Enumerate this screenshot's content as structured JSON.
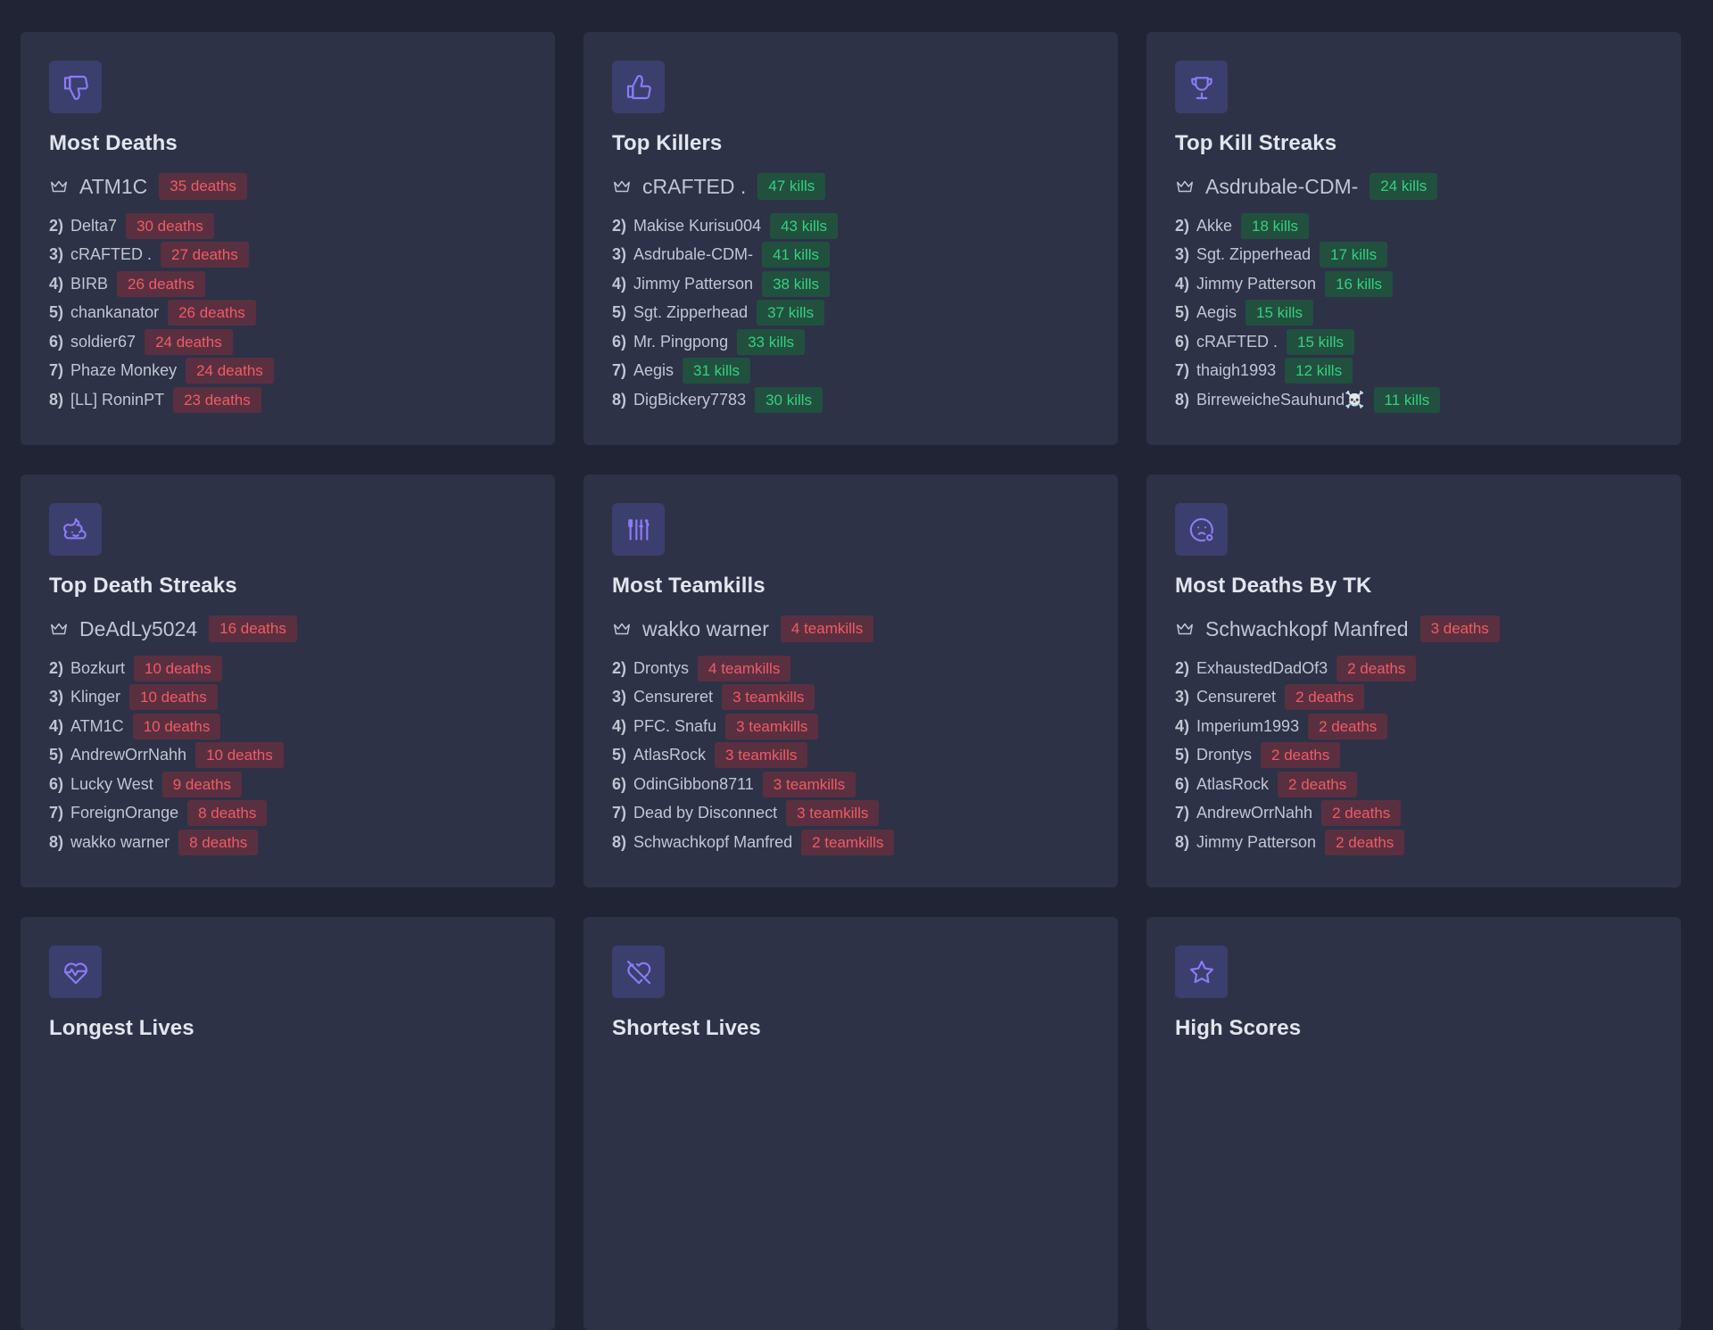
{
  "cards": [
    {
      "title": "Most Deaths",
      "icon": "thumbs-down-icon",
      "badge_color": "red",
      "leader": {
        "name": "ATM1C",
        "value": "35 deaths"
      },
      "rows": [
        {
          "rank": "2)",
          "name": "Delta7",
          "value": "30 deaths"
        },
        {
          "rank": "3)",
          "name": "cRAFTED .",
          "value": "27 deaths"
        },
        {
          "rank": "4)",
          "name": "BIRB",
          "value": "26 deaths"
        },
        {
          "rank": "5)",
          "name": "chankanator",
          "value": "26 deaths"
        },
        {
          "rank": "6)",
          "name": "soldier67",
          "value": "24 deaths"
        },
        {
          "rank": "7)",
          "name": "Phaze Monkey",
          "value": "24 deaths"
        },
        {
          "rank": "8)",
          "name": "[LL] RoninPT",
          "value": "23 deaths"
        }
      ]
    },
    {
      "title": "Top Killers",
      "icon": "thumbs-up-icon",
      "badge_color": "green",
      "leader": {
        "name": "cRAFTED .",
        "value": "47 kills"
      },
      "rows": [
        {
          "rank": "2)",
          "name": "Makise Kurisu004",
          "value": "43 kills"
        },
        {
          "rank": "3)",
          "name": "Asdrubale-CDM-",
          "value": "41 kills"
        },
        {
          "rank": "4)",
          "name": "Jimmy Patterson",
          "value": "38 kills"
        },
        {
          "rank": "5)",
          "name": "Sgt. Zipperhead",
          "value": "37 kills"
        },
        {
          "rank": "6)",
          "name": "Mr. Pingpong",
          "value": "33 kills"
        },
        {
          "rank": "7)",
          "name": "Aegis",
          "value": "31 kills"
        },
        {
          "rank": "8)",
          "name": "DigBickery7783",
          "value": "30 kills"
        }
      ]
    },
    {
      "title": "Top Kill Streaks",
      "icon": "trophy-icon",
      "badge_color": "green",
      "leader": {
        "name": "Asdrubale-CDM-",
        "value": "24 kills"
      },
      "rows": [
        {
          "rank": "2)",
          "name": "Akke",
          "value": "18 kills"
        },
        {
          "rank": "3)",
          "name": "Sgt. Zipperhead",
          "value": "17 kills"
        },
        {
          "rank": "4)",
          "name": "Jimmy Patterson",
          "value": "16 kills"
        },
        {
          "rank": "5)",
          "name": "Aegis",
          "value": "15 kills"
        },
        {
          "rank": "6)",
          "name": "cRAFTED .",
          "value": "15 kills"
        },
        {
          "rank": "7)",
          "name": "thaigh1993",
          "value": "12 kills"
        },
        {
          "rank": "8)",
          "name": "BirreweicheSauhund☠️",
          "value": "11 kills"
        }
      ]
    },
    {
      "title": "Top Death Streaks",
      "icon": "poop-icon",
      "badge_color": "red",
      "leader": {
        "name": "DeAdLy5024",
        "value": "16 deaths"
      },
      "rows": [
        {
          "rank": "2)",
          "name": "Bozkurt",
          "value": "10 deaths"
        },
        {
          "rank": "3)",
          "name": "Klinger",
          "value": "10 deaths"
        },
        {
          "rank": "4)",
          "name": "ATM1C",
          "value": "10 deaths"
        },
        {
          "rank": "5)",
          "name": "AndrewOrrNahh",
          "value": "10 deaths"
        },
        {
          "rank": "6)",
          "name": "Lucky West",
          "value": "9 deaths"
        },
        {
          "rank": "7)",
          "name": "ForeignOrange",
          "value": "8 deaths"
        },
        {
          "rank": "8)",
          "name": "wakko warner",
          "value": "8 deaths"
        }
      ]
    },
    {
      "title": "Most Teamkills",
      "icon": "tools-icon",
      "badge_color": "red",
      "leader": {
        "name": "wakko warner",
        "value": "4 teamkills"
      },
      "rows": [
        {
          "rank": "2)",
          "name": "Drontys",
          "value": "4 teamkills"
        },
        {
          "rank": "3)",
          "name": "Censureret",
          "value": "3 teamkills"
        },
        {
          "rank": "4)",
          "name": "PFC. Snafu",
          "value": "3 teamkills"
        },
        {
          "rank": "5)",
          "name": "AtlasRock",
          "value": "3 teamkills"
        },
        {
          "rank": "6)",
          "name": "OdinGibbon8711",
          "value": "3 teamkills"
        },
        {
          "rank": "7)",
          "name": "Dead by Disconnect",
          "value": "3 teamkills"
        },
        {
          "rank": "8)",
          "name": "Schwachkopf Manfred",
          "value": "2 teamkills"
        }
      ]
    },
    {
      "title": "Most Deaths By TK",
      "icon": "sad-face-icon",
      "badge_color": "red",
      "leader": {
        "name": "Schwachkopf Manfred",
        "value": "3 deaths"
      },
      "rows": [
        {
          "rank": "2)",
          "name": "ExhaustedDadOf3",
          "value": "2 deaths"
        },
        {
          "rank": "3)",
          "name": "Censureret",
          "value": "2 deaths"
        },
        {
          "rank": "4)",
          "name": "Imperium1993",
          "value": "2 deaths"
        },
        {
          "rank": "5)",
          "name": "Drontys",
          "value": "2 deaths"
        },
        {
          "rank": "6)",
          "name": "AtlasRock",
          "value": "2 deaths"
        },
        {
          "rank": "7)",
          "name": "AndrewOrrNahh",
          "value": "2 deaths"
        },
        {
          "rank": "8)",
          "name": "Jimmy Patterson",
          "value": "2 deaths"
        }
      ]
    },
    {
      "title": "Longest Lives",
      "icon": "heartbeat-icon",
      "rows": []
    },
    {
      "title": "Shortest Lives",
      "icon": "heart-off-icon",
      "rows": []
    },
    {
      "title": "High Scores",
      "icon": "star-icon",
      "rows": []
    }
  ],
  "colors": {
    "page_bg": "#202434",
    "card_bg": "#2d3247",
    "icon_bg": "#3b3f6e",
    "icon_fg": "#8b7cf6",
    "red_text": "#f05a64",
    "red_bg": "#5a3040",
    "green_text": "#35d07d",
    "green_bg": "#21503f"
  }
}
